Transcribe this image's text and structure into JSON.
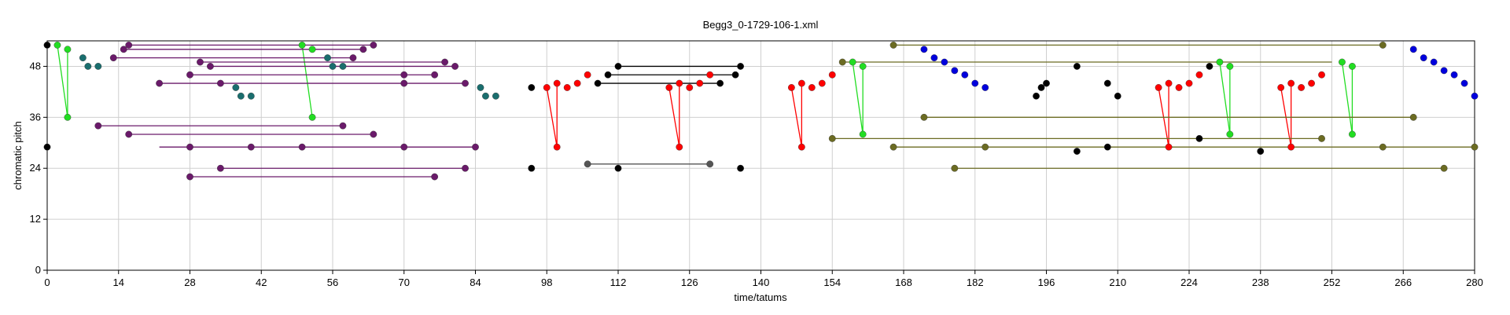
{
  "chart_data": {
    "type": "scatter",
    "title": "Begg3_0-1729-106-1.xml",
    "xlabel": "time/tatums",
    "ylabel": "chromatic pitch",
    "xlim": [
      0,
      280
    ],
    "ylim": [
      0,
      54
    ],
    "xticks": [
      0,
      14,
      28,
      42,
      56,
      70,
      84,
      98,
      112,
      126,
      140,
      154,
      168,
      182,
      196,
      210,
      224,
      238,
      252,
      266,
      280
    ],
    "yticks": [
      0,
      12,
      24,
      36,
      48
    ],
    "grid": true,
    "legend": "none",
    "colors": {
      "black": "#000000",
      "green": "#22dd22",
      "teal": "#1a6e6e",
      "purple": "#6a1a6a",
      "red": "#ff0000",
      "blue": "#0000dd",
      "olive": "#6b6b22",
      "grey": "#555555"
    },
    "series": [
      {
        "color": "black",
        "points": [
          [
            0,
            53
          ],
          [
            0,
            29
          ],
          [
            95,
            43
          ],
          [
            95,
            24
          ],
          [
            108,
            44
          ],
          [
            110,
            46
          ],
          [
            112,
            48
          ],
          [
            112,
            24
          ],
          [
            132,
            44
          ],
          [
            135,
            46
          ],
          [
            136,
            48
          ],
          [
            136,
            24
          ],
          [
            194,
            41
          ],
          [
            195,
            43
          ],
          [
            196,
            44
          ],
          [
            202,
            48
          ],
          [
            202,
            28
          ],
          [
            208,
            44
          ],
          [
            208,
            29
          ],
          [
            210,
            41
          ],
          [
            226,
            31
          ],
          [
            228,
            48
          ],
          [
            238,
            28
          ]
        ],
        "segments": [
          [
            [
              112,
              48
            ],
            [
              136,
              48
            ]
          ],
          [
            [
              110,
              46
            ],
            [
              135,
              46
            ]
          ],
          [
            [
              108,
              44
            ],
            [
              132,
              44
            ]
          ]
        ]
      },
      {
        "color": "green",
        "points": [
          [
            2,
            53
          ],
          [
            4,
            52
          ],
          [
            4,
            36
          ],
          [
            50,
            53
          ],
          [
            52,
            52
          ],
          [
            52,
            36
          ],
          [
            158,
            49
          ],
          [
            160,
            48
          ],
          [
            160,
            32
          ],
          [
            230,
            49
          ],
          [
            232,
            48
          ],
          [
            232,
            32
          ],
          [
            254,
            49
          ],
          [
            256,
            48
          ],
          [
            256,
            32
          ]
        ],
        "segments": [
          [
            [
              2,
              53
            ],
            [
              4,
              36
            ]
          ],
          [
            [
              4,
              52
            ],
            [
              4,
              36
            ]
          ],
          [
            [
              50,
              53
            ],
            [
              52,
              36
            ]
          ],
          [
            [
              160,
              48
            ],
            [
              160,
              32
            ]
          ],
          [
            [
              158,
              49
            ],
            [
              160,
              32
            ]
          ],
          [
            [
              232,
              48
            ],
            [
              232,
              32
            ]
          ],
          [
            [
              230,
              49
            ],
            [
              232,
              32
            ]
          ],
          [
            [
              256,
              48
            ],
            [
              256,
              32
            ]
          ],
          [
            [
              254,
              49
            ],
            [
              256,
              32
            ]
          ]
        ]
      },
      {
        "color": "teal",
        "points": [
          [
            7,
            50
          ],
          [
            8,
            48
          ],
          [
            10,
            48
          ],
          [
            55,
            50
          ],
          [
            56,
            48
          ],
          [
            58,
            48
          ],
          [
            37,
            43
          ],
          [
            38,
            41
          ],
          [
            40,
            41
          ],
          [
            85,
            43
          ],
          [
            86,
            41
          ],
          [
            88,
            41
          ]
        ],
        "segments": []
      },
      {
        "color": "purple",
        "points": [
          [
            13,
            50
          ],
          [
            15,
            52
          ],
          [
            16,
            53
          ],
          [
            22,
            44
          ],
          [
            28,
            46
          ],
          [
            28,
            29
          ],
          [
            28,
            22
          ],
          [
            30,
            49
          ],
          [
            32,
            48
          ],
          [
            34,
            44
          ],
          [
            34,
            24
          ],
          [
            40,
            29
          ],
          [
            50,
            29
          ],
          [
            58,
            34
          ],
          [
            60,
            50
          ],
          [
            62,
            52
          ],
          [
            64,
            53
          ],
          [
            64,
            32
          ],
          [
            70,
            29
          ],
          [
            70,
            46
          ],
          [
            70,
            44
          ],
          [
            76,
            46
          ],
          [
            76,
            22
          ],
          [
            78,
            49
          ],
          [
            80,
            48
          ],
          [
            82,
            44
          ],
          [
            82,
            24
          ],
          [
            84,
            29
          ],
          [
            10,
            34
          ],
          [
            16,
            32
          ]
        ],
        "segments": [
          [
            [
              16,
              53
            ],
            [
              64,
              53
            ]
          ],
          [
            [
              15,
              52
            ],
            [
              62,
              52
            ]
          ],
          [
            [
              13,
              50
            ],
            [
              60,
              50
            ]
          ],
          [
            [
              30,
              49
            ],
            [
              78,
              49
            ]
          ],
          [
            [
              32,
              48
            ],
            [
              80,
              48
            ]
          ],
          [
            [
              28,
              46
            ],
            [
              76,
              46
            ]
          ],
          [
            [
              22,
              44
            ],
            [
              82,
              44
            ]
          ],
          [
            [
              10,
              34
            ],
            [
              58,
              34
            ]
          ],
          [
            [
              16,
              32
            ],
            [
              64,
              32
            ]
          ],
          [
            [
              22,
              29
            ],
            [
              84,
              29
            ]
          ],
          [
            [
              34,
              24
            ],
            [
              82,
              24
            ]
          ],
          [
            [
              28,
              22
            ],
            [
              76,
              22
            ]
          ]
        ]
      },
      {
        "color": "red",
        "points": [
          [
            98,
            43
          ],
          [
            100,
            44
          ],
          [
            102,
            43
          ],
          [
            104,
            44
          ],
          [
            106,
            46
          ],
          [
            100,
            29
          ],
          [
            122,
            43
          ],
          [
            124,
            44
          ],
          [
            126,
            43
          ],
          [
            128,
            44
          ],
          [
            130,
            46
          ],
          [
            124,
            29
          ],
          [
            146,
            43
          ],
          [
            148,
            44
          ],
          [
            150,
            43
          ],
          [
            152,
            44
          ],
          [
            154,
            46
          ],
          [
            148,
            29
          ],
          [
            218,
            43
          ],
          [
            220,
            44
          ],
          [
            222,
            43
          ],
          [
            224,
            44
          ],
          [
            226,
            46
          ],
          [
            220,
            29
          ],
          [
            242,
            43
          ],
          [
            244,
            44
          ],
          [
            246,
            43
          ],
          [
            248,
            44
          ],
          [
            250,
            46
          ],
          [
            244,
            29
          ]
        ],
        "segments": [
          [
            [
              98,
              43
            ],
            [
              100,
              29
            ]
          ],
          [
            [
              100,
              44
            ],
            [
              100,
              29
            ]
          ],
          [
            [
              122,
              43
            ],
            [
              124,
              29
            ]
          ],
          [
            [
              124,
              44
            ],
            [
              124,
              29
            ]
          ],
          [
            [
              146,
              43
            ],
            [
              148,
              29
            ]
          ],
          [
            [
              148,
              44
            ],
            [
              148,
              29
            ]
          ],
          [
            [
              218,
              43
            ],
            [
              220,
              29
            ]
          ],
          [
            [
              220,
              44
            ],
            [
              220,
              29
            ]
          ],
          [
            [
              242,
              43
            ],
            [
              244,
              29
            ]
          ],
          [
            [
              244,
              44
            ],
            [
              244,
              29
            ]
          ]
        ]
      },
      {
        "color": "blue",
        "points": [
          [
            172,
            52
          ],
          [
            174,
            50
          ],
          [
            176,
            49
          ],
          [
            178,
            47
          ],
          [
            180,
            46
          ],
          [
            182,
            44
          ],
          [
            184,
            43
          ],
          [
            268,
            52
          ],
          [
            270,
            50
          ],
          [
            272,
            49
          ],
          [
            274,
            47
          ],
          [
            276,
            46
          ],
          [
            278,
            44
          ],
          [
            280,
            41
          ]
        ],
        "segments": []
      },
      {
        "color": "olive",
        "points": [
          [
            166,
            53
          ],
          [
            262,
            53
          ],
          [
            156,
            49
          ],
          [
            172,
            36
          ],
          [
            268,
            36
          ],
          [
            154,
            31
          ],
          [
            250,
            31
          ],
          [
            166,
            29
          ],
          [
            184,
            29
          ],
          [
            262,
            29
          ],
          [
            280,
            29
          ],
          [
            178,
            24
          ],
          [
            274,
            24
          ]
        ],
        "segments": [
          [
            [
              166,
              53
            ],
            [
              262,
              53
            ]
          ],
          [
            [
              156,
              49
            ],
            [
              252,
              49
            ]
          ],
          [
            [
              172,
              36
            ],
            [
              268,
              36
            ]
          ],
          [
            [
              154,
              31
            ],
            [
              250,
              31
            ]
          ],
          [
            [
              166,
              29
            ],
            [
              280,
              29
            ]
          ],
          [
            [
              178,
              24
            ],
            [
              274,
              24
            ]
          ]
        ]
      },
      {
        "color": "grey",
        "points": [
          [
            106,
            25
          ],
          [
            130,
            25
          ]
        ],
        "segments": [
          [
            [
              106,
              25
            ],
            [
              130,
              25
            ]
          ]
        ]
      }
    ]
  }
}
